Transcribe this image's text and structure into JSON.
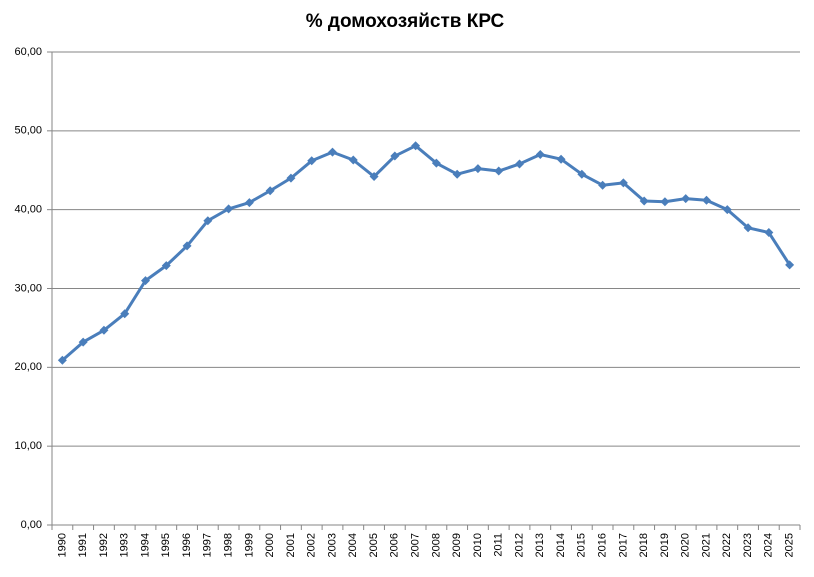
{
  "chart_data": {
    "type": "line",
    "title": "% домохозяйств КРС",
    "categories": [
      "1990",
      "1991",
      "1992",
      "1993",
      "1994",
      "1995",
      "1996",
      "1997",
      "1998",
      "1999",
      "2000",
      "2001",
      "2002",
      "2003",
      "2004",
      "2005",
      "2006",
      "2007",
      "2008",
      "2009",
      "2010",
      "2011",
      "2012",
      "2013",
      "2014",
      "2015",
      "2016",
      "2017",
      "2018",
      "2019",
      "2020",
      "2021",
      "2022",
      "2023",
      "2024",
      "2025"
    ],
    "series": [
      {
        "color": "#4a7ebb",
        "values": [
          20.9,
          23.2,
          24.7,
          26.8,
          31.0,
          32.9,
          35.4,
          38.6,
          40.1,
          40.9,
          42.4,
          44.0,
          46.2,
          47.3,
          46.3,
          44.2,
          46.8,
          48.1,
          45.9,
          44.5,
          45.2,
          44.9,
          45.8,
          47.0,
          46.4,
          44.5,
          43.1,
          43.4,
          41.1,
          41.0,
          41.4,
          41.2,
          40.0,
          37.7,
          37.1,
          33.0
        ]
      }
    ],
    "ylim": [
      0,
      60
    ],
    "yticks": [
      {
        "value": 0,
        "label": "0,00"
      },
      {
        "value": 10,
        "label": "10,00"
      },
      {
        "value": 20,
        "label": "20,00"
      },
      {
        "value": 30,
        "label": "30,00"
      },
      {
        "value": 40,
        "label": "40,00"
      },
      {
        "value": 50,
        "label": "50,00"
      },
      {
        "value": 60,
        "label": "60,00"
      }
    ],
    "grid": true
  }
}
